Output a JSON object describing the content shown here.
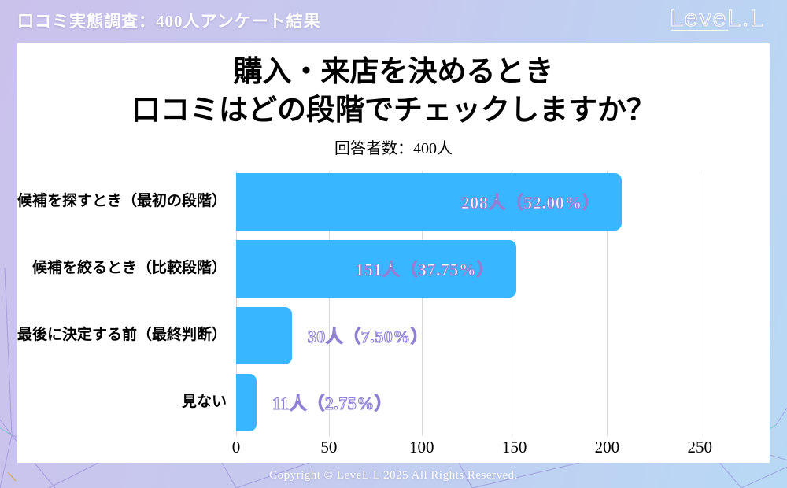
{
  "header": {
    "title": "口コミ実態調査：400人アンケート結果",
    "logo": "LeveL.L"
  },
  "card": {
    "title_line1": "購入・来店を決めるとき",
    "title_line2": "口コミはどの段階でチェックしますか？",
    "subtitle": "回答者数：400人"
  },
  "chart_data": {
    "type": "bar",
    "orientation": "horizontal",
    "title": "購入・来店を決めるとき 口コミはどの段階でチェックしますか？",
    "subtitle": "回答者数：400人",
    "categories": [
      "候補を探すとき（最初の段階）",
      "候補を絞るとき（比較段階）",
      "最後に決定する前（最終判断）",
      "見ない"
    ],
    "values": [
      208,
      151,
      30,
      11
    ],
    "percentages": [
      52.0,
      37.75,
      7.5,
      2.75
    ],
    "value_labels": [
      "208人（52.00%）",
      "151人（37.75%）",
      "30人（7.50%）",
      "11人（2.75%）"
    ],
    "label_position": [
      "inside",
      "inside",
      "outside",
      "outside"
    ],
    "x_ticks": [
      0,
      50,
      100,
      150,
      200,
      250
    ],
    "axis_max": 280,
    "grid": true,
    "bar_color": "#38b6ff",
    "label_fill_color": "#ffffff",
    "label_stroke_color": "#8f80d6",
    "total_respondents": 400
  },
  "footer": {
    "text": "Copyright © LeveL.L 2025 All Rights Reserved."
  }
}
